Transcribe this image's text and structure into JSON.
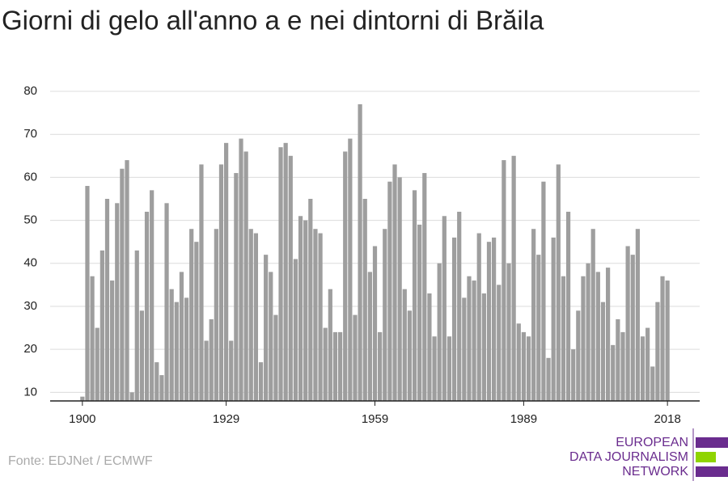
{
  "chart_data": {
    "type": "bar",
    "title": "Giorni di gelo all'anno a e nei dintorni di Brăila",
    "x": [
      1900,
      1901,
      1902,
      1903,
      1904,
      1905,
      1906,
      1907,
      1908,
      1909,
      1910,
      1911,
      1912,
      1913,
      1914,
      1915,
      1916,
      1917,
      1918,
      1919,
      1920,
      1921,
      1922,
      1923,
      1924,
      1925,
      1926,
      1927,
      1928,
      1929,
      1930,
      1931,
      1932,
      1933,
      1934,
      1935,
      1936,
      1937,
      1938,
      1939,
      1940,
      1941,
      1942,
      1943,
      1944,
      1945,
      1946,
      1947,
      1948,
      1949,
      1950,
      1951,
      1952,
      1953,
      1954,
      1955,
      1956,
      1957,
      1958,
      1959,
      1960,
      1961,
      1962,
      1963,
      1964,
      1965,
      1966,
      1967,
      1968,
      1969,
      1970,
      1971,
      1972,
      1973,
      1974,
      1975,
      1976,
      1977,
      1978,
      1979,
      1980,
      1981,
      1982,
      1983,
      1984,
      1985,
      1986,
      1987,
      1988,
      1989,
      1990,
      1991,
      1992,
      1993,
      1994,
      1995,
      1996,
      1997,
      1998,
      1999,
      2000,
      2001,
      2002,
      2003,
      2004,
      2005,
      2006,
      2007,
      2008,
      2009,
      2010,
      2011,
      2012,
      2013,
      2014,
      2015,
      2016,
      2017,
      2018
    ],
    "values": [
      9,
      58,
      37,
      25,
      43,
      55,
      36,
      54,
      62,
      64,
      10,
      43,
      29,
      52,
      57,
      17,
      14,
      54,
      34,
      31,
      38,
      32,
      48,
      45,
      63,
      22,
      27,
      48,
      63,
      68,
      22,
      61,
      69,
      66,
      48,
      47,
      17,
      42,
      38,
      28,
      67,
      68,
      65,
      41,
      51,
      50,
      55,
      48,
      47,
      25,
      34,
      24,
      24,
      66,
      69,
      28,
      77,
      55,
      38,
      44,
      24,
      48,
      59,
      63,
      60,
      34,
      29,
      57,
      49,
      61,
      33,
      23,
      40,
      51,
      23,
      46,
      52,
      32,
      37,
      36,
      47,
      33,
      45,
      46,
      35,
      64,
      40,
      65,
      26,
      24,
      23,
      48,
      42,
      59,
      18,
      46,
      63,
      37,
      52,
      20,
      29,
      37,
      40,
      48,
      38,
      31,
      39,
      21,
      27,
      24,
      44,
      42,
      48,
      23,
      25,
      16,
      31,
      37,
      36
    ],
    "color": "#9e9e9e",
    "xlim": [
      1893.5,
      2024.5
    ],
    "xticks": [
      1900,
      1929,
      1959,
      1989,
      2018
    ],
    "ylim": [
      8,
      80
    ],
    "yticks": [
      10,
      20,
      30,
      40,
      50,
      60,
      70,
      80
    ],
    "grid": true,
    "source": "Fonte: EDJNet / ECMWF",
    "logo": [
      "EUROPEAN",
      "DATA JOURNALISM",
      "NETWORK"
    ]
  }
}
